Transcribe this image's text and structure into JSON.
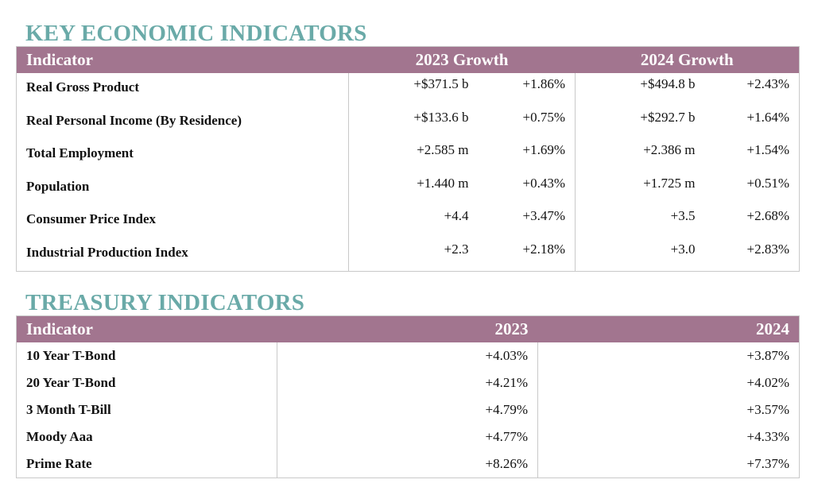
{
  "economic": {
    "title": "KEY ECONOMIC INDICATORS",
    "headers": {
      "indicator": "Indicator",
      "growth_2023": "2023 Growth",
      "growth_2024": "2024 Growth"
    },
    "rows": [
      {
        "indicator": "Real Gross Product",
        "v2023": "+$371.5 b",
        "p2023": "+1.86%",
        "v2024": "+$494.8 b",
        "p2024": "+2.43%"
      },
      {
        "indicator": "Real Personal Income (By Residence)",
        "v2023": "+$133.6 b",
        "p2023": "+0.75%",
        "v2024": "+$292.7 b",
        "p2024": "+1.64%"
      },
      {
        "indicator": "Total Employment",
        "v2023": "+2.585 m",
        "p2023": "+1.69%",
        "v2024": "+2.386 m",
        "p2024": "+1.54%"
      },
      {
        "indicator": "Population",
        "v2023": "+1.440 m",
        "p2023": "+0.43%",
        "v2024": "+1.725 m",
        "p2024": "+0.51%"
      },
      {
        "indicator": "Consumer Price Index",
        "v2023": "+4.4",
        "p2023": "+3.47%",
        "v2024": "+3.5",
        "p2024": "+2.68%"
      },
      {
        "indicator": "Industrial Production Index",
        "v2023": "+2.3",
        "p2023": "+2.18%",
        "v2024": "+3.0",
        "p2024": "+2.83%"
      }
    ]
  },
  "treasury": {
    "title": "TREASURY INDICATORS",
    "headers": {
      "indicator": "Indicator",
      "y2023": "2023",
      "y2024": "2024"
    },
    "rows": [
      {
        "indicator": "10 Year T-Bond",
        "v2023": "+4.03%",
        "v2024": "+3.87%"
      },
      {
        "indicator": "20 Year T-Bond",
        "v2023": "+4.21%",
        "v2024": "+4.02%"
      },
      {
        "indicator": "3 Month T-Bill",
        "v2023": "+4.79%",
        "v2024": "+3.57%"
      },
      {
        "indicator": "Moody Aaa",
        "v2023": "+4.77%",
        "v2024": "+4.33%"
      },
      {
        "indicator": "Prime Rate",
        "v2023": "+8.26%",
        "v2024": "+7.37%"
      }
    ]
  },
  "colors": {
    "title_teal": "#6aaaa8",
    "header_mauve": "#a2758f",
    "border_gray": "#c9c9c9"
  }
}
